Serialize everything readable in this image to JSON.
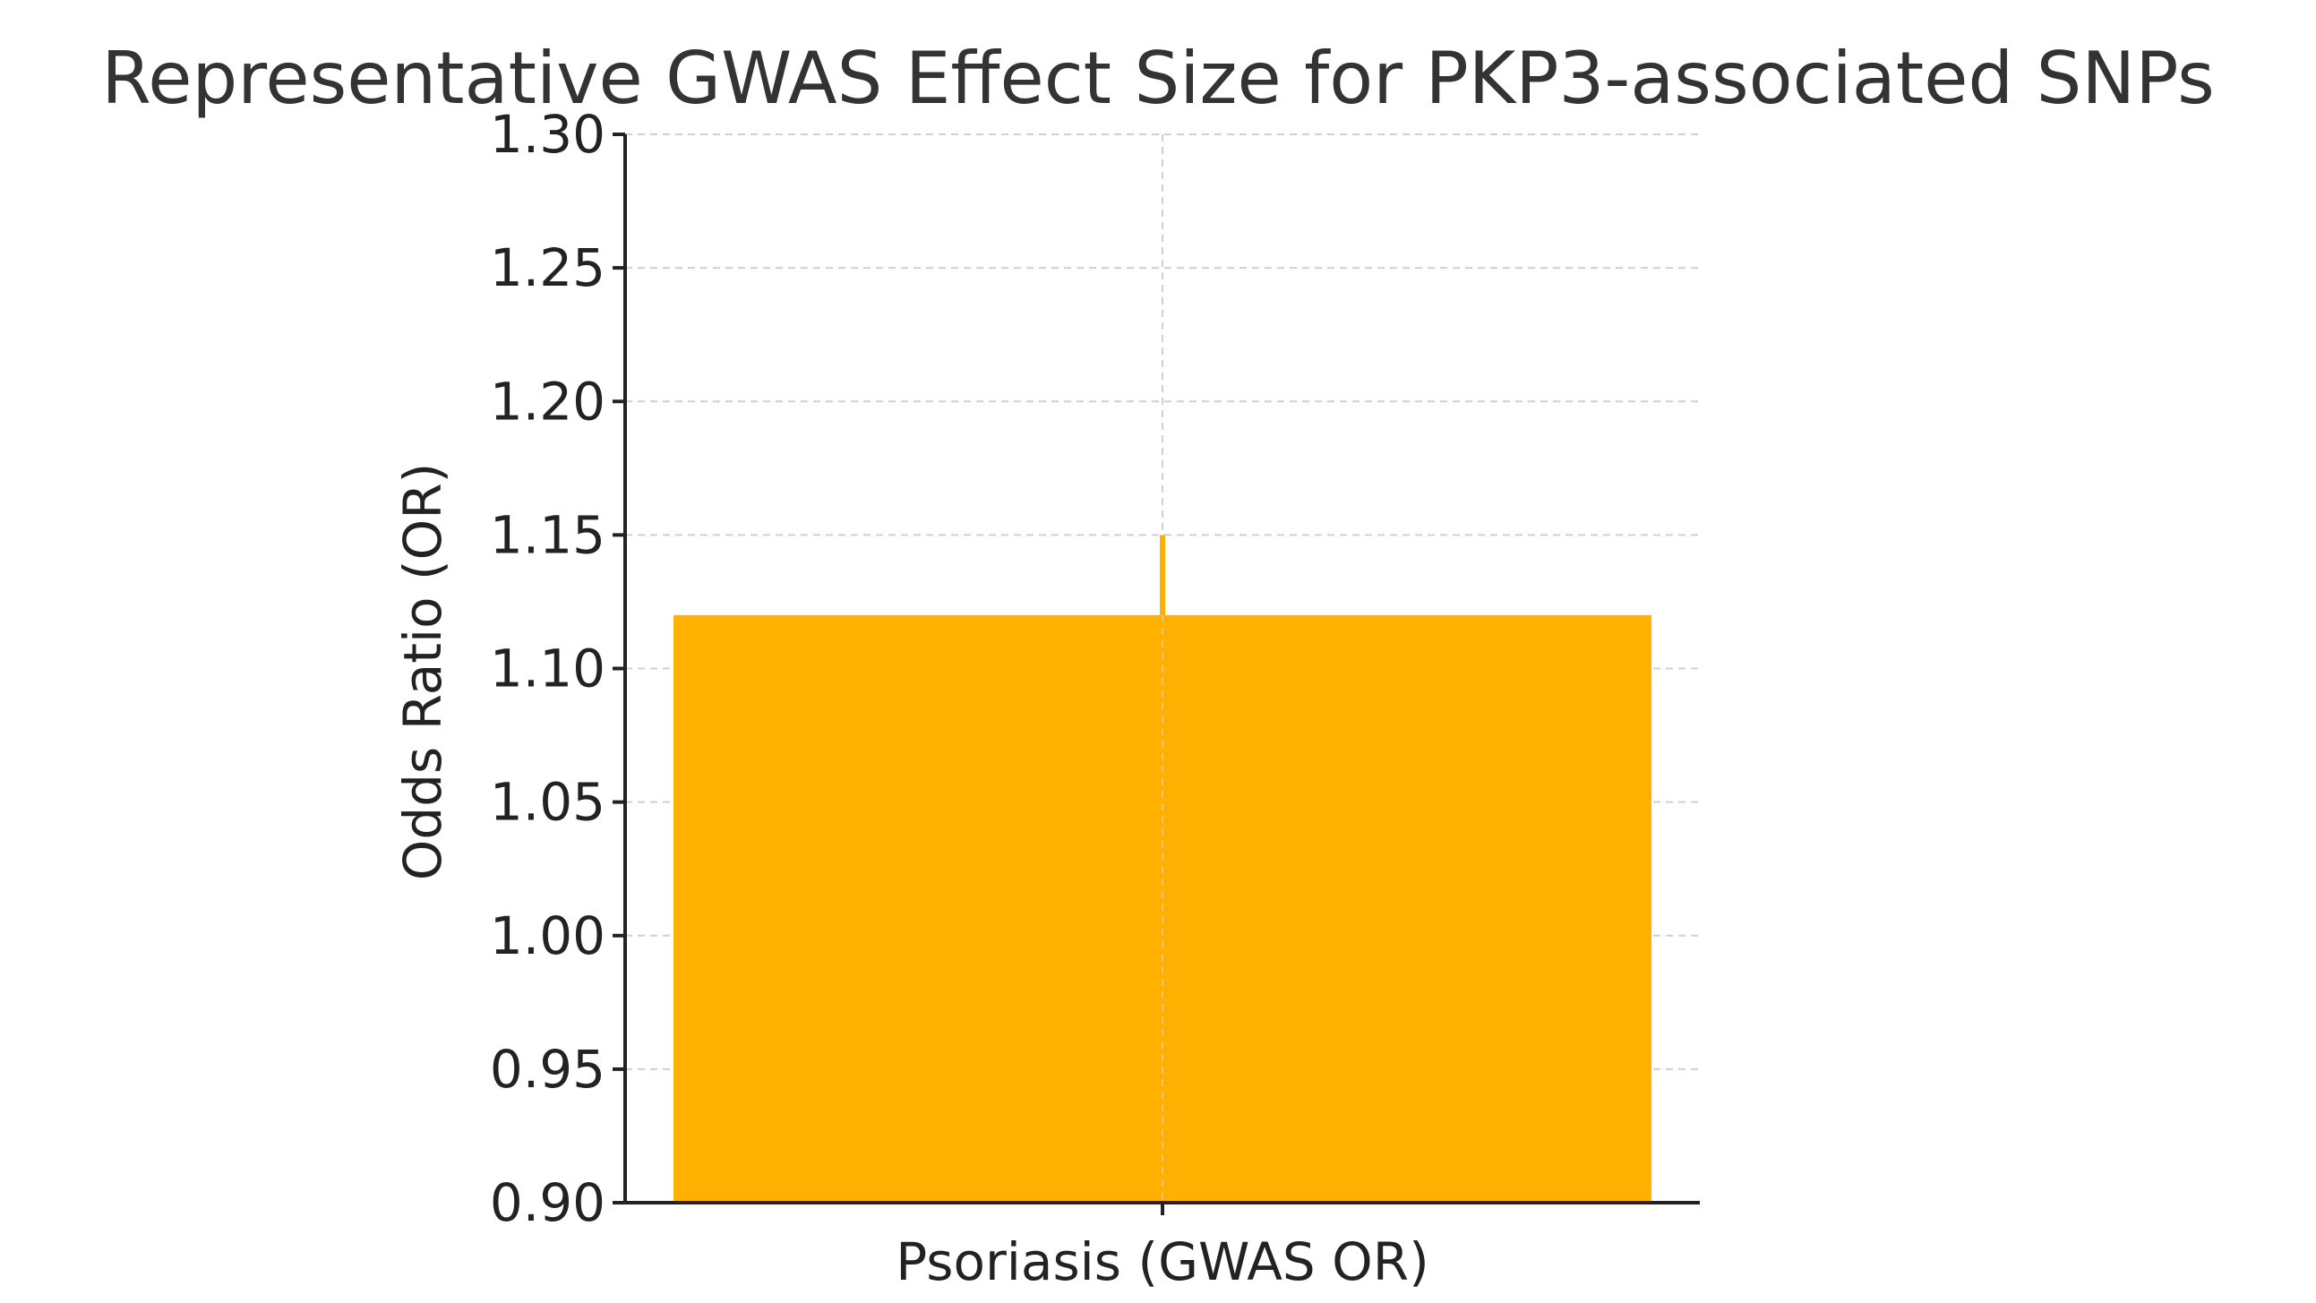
{
  "chart_data": {
    "type": "bar",
    "title": "Representative GWAS Effect Size for PKP3-associated SNPs",
    "xlabel": "",
    "ylabel": "Odds Ratio (OR)",
    "categories": [
      "Psoriasis (GWAS OR)"
    ],
    "values": [
      1.12
    ],
    "error_upper": [
      1.15
    ],
    "ylim": [
      0.9,
      1.3
    ],
    "yticks": [
      "0.90",
      "0.95",
      "1.00",
      "1.05",
      "1.10",
      "1.15",
      "1.20",
      "1.25",
      "1.30"
    ],
    "grid": true,
    "bar_color": "#ffb000",
    "errorbar_color": "#ffb000"
  }
}
